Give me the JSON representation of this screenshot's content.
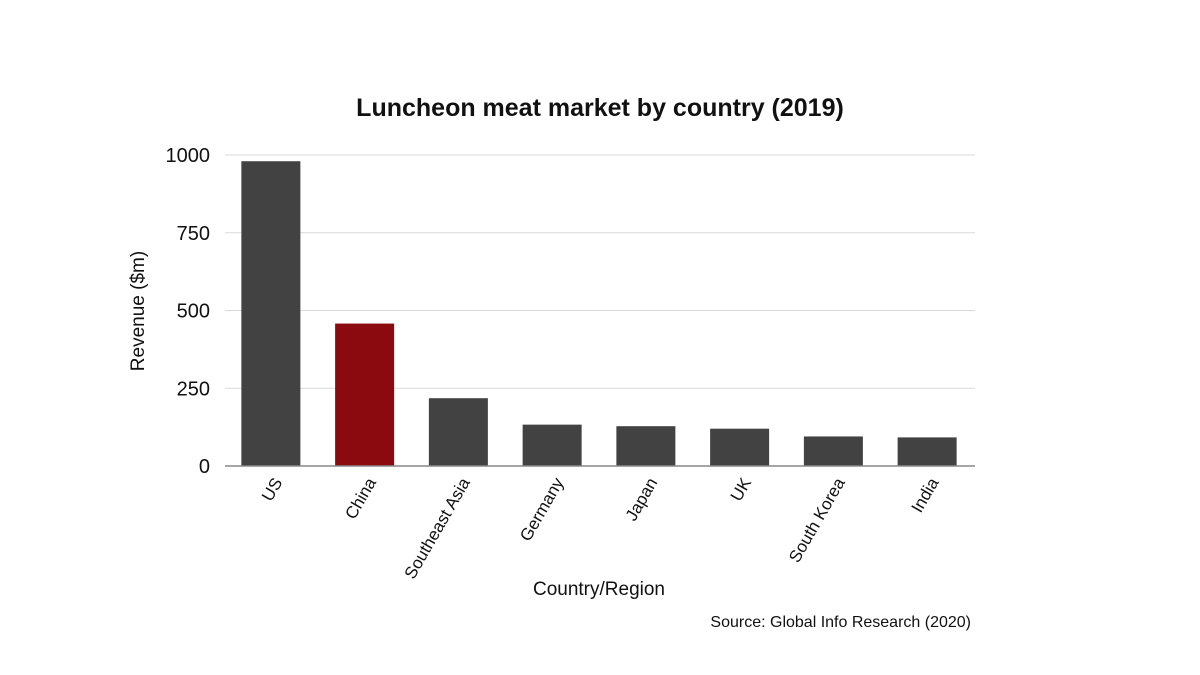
{
  "chart_data": {
    "type": "bar",
    "title": "Luncheon meat market by country (2019)",
    "xlabel": "Country/Region",
    "ylabel": "Revenue ($m)",
    "categories": [
      "US",
      "China",
      "Southeast Asia",
      "Germany",
      "Japan",
      "UK",
      "South Korea",
      "India"
    ],
    "values": [
      980,
      458,
      218,
      133,
      128,
      120,
      95,
      92
    ],
    "ylim": [
      0,
      1000
    ],
    "yticks": [
      0,
      250,
      500,
      750,
      1000
    ],
    "ytick_labels": [
      "0",
      "250",
      "500",
      "750",
      "1000"
    ],
    "grid": true,
    "legend": "none",
    "bar_color": "#424242",
    "highlight_color": "#8b0a10",
    "highlight_category": "China",
    "source": "Source: Global Info Research (2020)"
  }
}
